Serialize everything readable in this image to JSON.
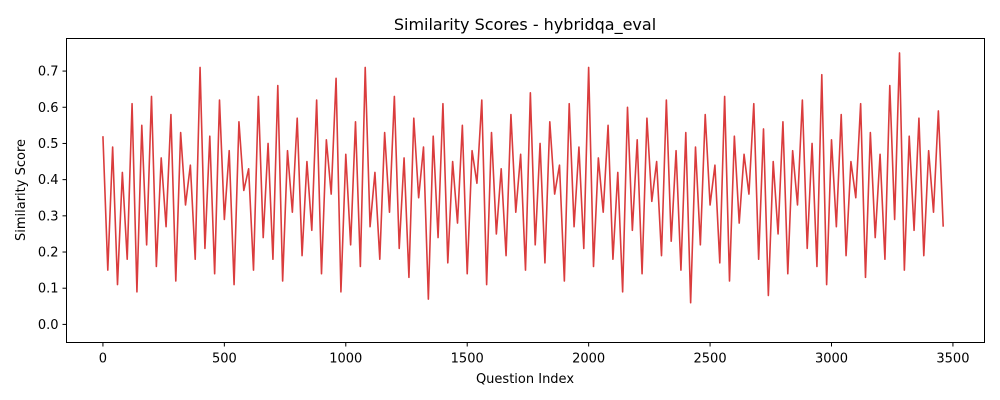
{
  "chart_data": {
    "type": "line",
    "title": "Similarity Scores - hybridqa_eval",
    "xlabel": "Question Index",
    "ylabel": "Similarity Score",
    "xlim": [
      -150,
      3630
    ],
    "ylim": [
      -0.05,
      0.79
    ],
    "xticks": [
      0,
      500,
      1000,
      1500,
      2000,
      2500,
      3000,
      3500
    ],
    "yticks": [
      0.0,
      0.1,
      0.2,
      0.3,
      0.4,
      0.5,
      0.6,
      0.7
    ],
    "ytick_labels": [
      "0.0",
      "0.1",
      "0.2",
      "0.3",
      "0.4",
      "0.5",
      "0.6",
      "0.7"
    ],
    "grid": false,
    "series": [
      {
        "color": "#d62728",
        "n_points": 3466,
        "sampled_every": 20,
        "x": [
          0,
          20,
          40,
          60,
          80,
          100,
          120,
          140,
          160,
          180,
          200,
          220,
          240,
          260,
          280,
          300,
          320,
          340,
          360,
          380,
          400,
          420,
          440,
          460,
          480,
          500,
          520,
          540,
          560,
          580,
          600,
          620,
          640,
          660,
          680,
          700,
          720,
          740,
          760,
          780,
          800,
          820,
          840,
          860,
          880,
          900,
          920,
          940,
          960,
          980,
          1000,
          1020,
          1040,
          1060,
          1080,
          1100,
          1120,
          1140,
          1160,
          1180,
          1200,
          1220,
          1240,
          1260,
          1280,
          1300,
          1320,
          1340,
          1360,
          1380,
          1400,
          1420,
          1440,
          1460,
          1480,
          1500,
          1520,
          1540,
          1560,
          1580,
          1600,
          1620,
          1640,
          1660,
          1680,
          1700,
          1720,
          1740,
          1760,
          1780,
          1800,
          1820,
          1840,
          1860,
          1880,
          1900,
          1920,
          1940,
          1960,
          1980,
          2000,
          2020,
          2040,
          2060,
          2080,
          2100,
          2120,
          2140,
          2160,
          2180,
          2200,
          2220,
          2240,
          2260,
          2280,
          2300,
          2320,
          2340,
          2360,
          2380,
          2400,
          2420,
          2440,
          2460,
          2480,
          2500,
          2520,
          2540,
          2560,
          2580,
          2600,
          2620,
          2640,
          2660,
          2680,
          2700,
          2720,
          2740,
          2760,
          2780,
          2800,
          2820,
          2840,
          2860,
          2880,
          2900,
          2920,
          2940,
          2960,
          2980,
          3000,
          3020,
          3040,
          3060,
          3080,
          3100,
          3120,
          3140,
          3160,
          3180,
          3200,
          3220,
          3240,
          3260,
          3280,
          3300,
          3320,
          3340,
          3360,
          3380,
          3400,
          3420,
          3440,
          3460
        ],
        "y": [
          0.52,
          0.15,
          0.49,
          0.11,
          0.42,
          0.18,
          0.61,
          0.09,
          0.55,
          0.22,
          0.63,
          0.16,
          0.46,
          0.27,
          0.58,
          0.12,
          0.53,
          0.33,
          0.44,
          0.18,
          0.71,
          0.21,
          0.52,
          0.14,
          0.62,
          0.29,
          0.48,
          0.11,
          0.56,
          0.37,
          0.43,
          0.15,
          0.63,
          0.24,
          0.5,
          0.18,
          0.66,
          0.12,
          0.48,
          0.31,
          0.57,
          0.19,
          0.45,
          0.26,
          0.62,
          0.14,
          0.51,
          0.36,
          0.68,
          0.09,
          0.47,
          0.22,
          0.56,
          0.16,
          0.71,
          0.27,
          0.42,
          0.18,
          0.53,
          0.31,
          0.63,
          0.21,
          0.46,
          0.13,
          0.57,
          0.35,
          0.49,
          0.07,
          0.52,
          0.24,
          0.61,
          0.17,
          0.45,
          0.28,
          0.55,
          0.14,
          0.48,
          0.39,
          0.62,
          0.11,
          0.53,
          0.25,
          0.43,
          0.19,
          0.58,
          0.31,
          0.47,
          0.15,
          0.64,
          0.22,
          0.5,
          0.17,
          0.56,
          0.36,
          0.44,
          0.12,
          0.61,
          0.27,
          0.49,
          0.21,
          0.71,
          0.16,
          0.46,
          0.31,
          0.55,
          0.18,
          0.42,
          0.09,
          0.6,
          0.26,
          0.51,
          0.14,
          0.57,
          0.34,
          0.45,
          0.19,
          0.62,
          0.23,
          0.48,
          0.15,
          0.53,
          0.06,
          0.49,
          0.22,
          0.58,
          0.33,
          0.44,
          0.17,
          0.63,
          0.12,
          0.52,
          0.28,
          0.47,
          0.36,
          0.61,
          0.18,
          0.54,
          0.08,
          0.45,
          0.25,
          0.56,
          0.14,
          0.48,
          0.33,
          0.62,
          0.21,
          0.5,
          0.16,
          0.69,
          0.11,
          0.51,
          0.27,
          0.58,
          0.19,
          0.45,
          0.35,
          0.61,
          0.13,
          0.53,
          0.24,
          0.47,
          0.18,
          0.66,
          0.29,
          0.75,
          0.15,
          0.52,
          0.26,
          0.57,
          0.19,
          0.48,
          0.31,
          0.59,
          0.27
        ]
      }
    ]
  }
}
